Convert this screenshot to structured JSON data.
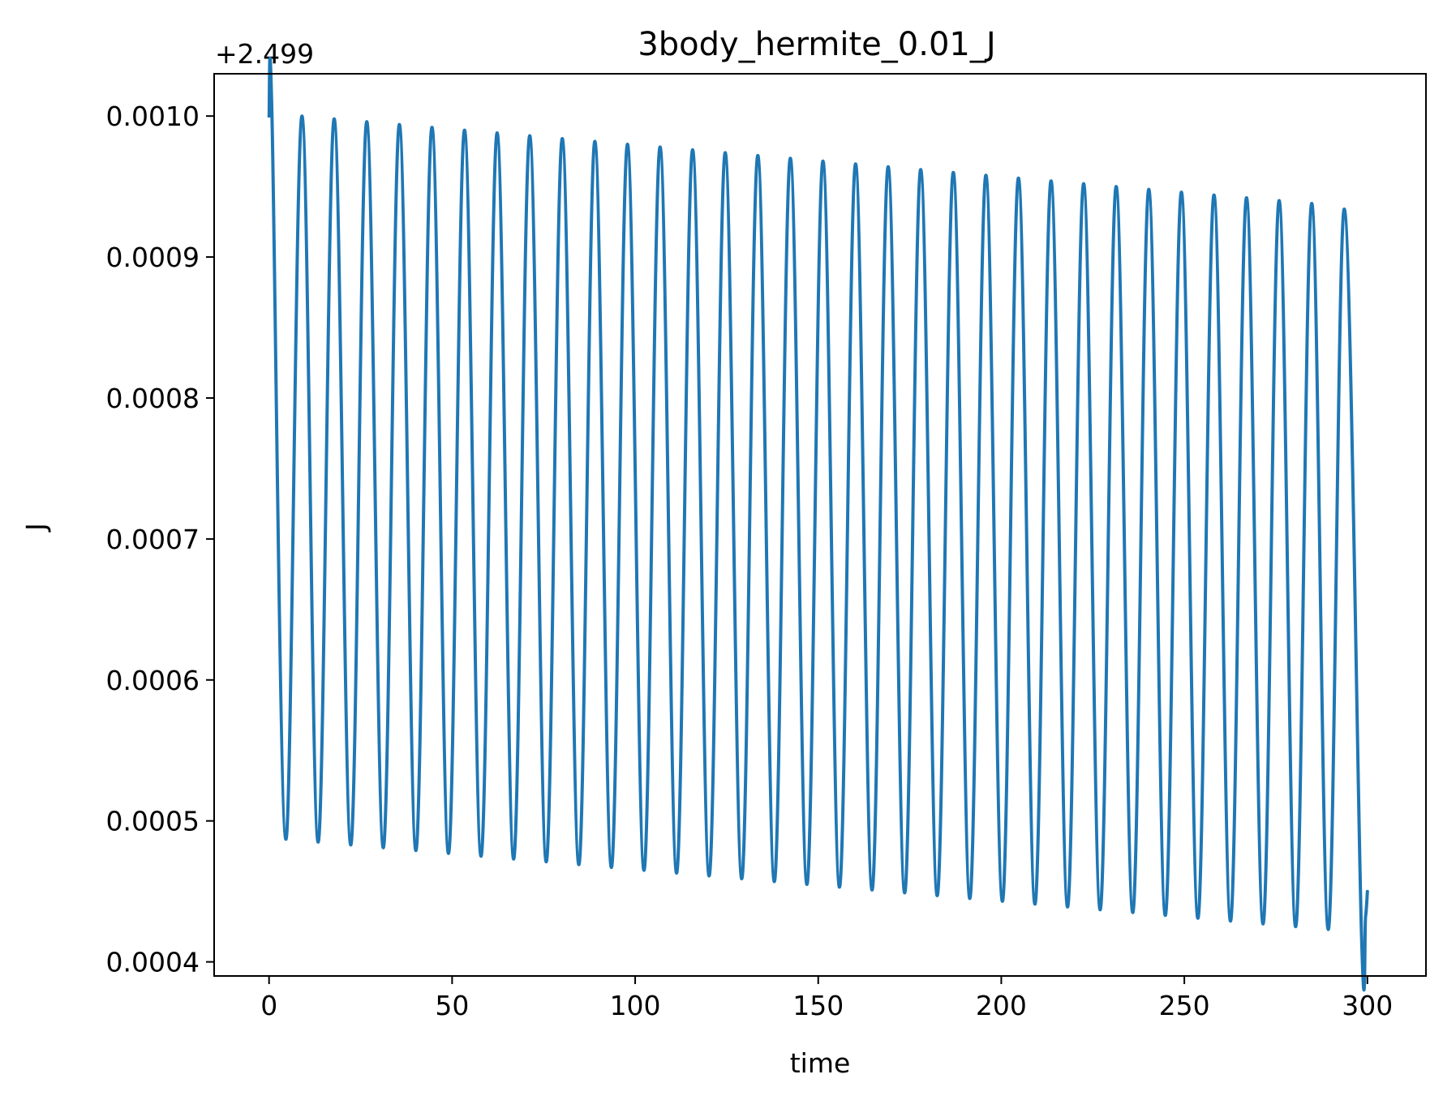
{
  "chart_data": {
    "type": "line",
    "title": "3body_hermite_0.01_J",
    "xlabel": "time",
    "ylabel": "J",
    "y_offset_text": "+2.499",
    "xlim": [
      -15,
      316
    ],
    "ylim": [
      0.00039,
      0.00103
    ],
    "x_ticks": [
      0,
      50,
      100,
      150,
      200,
      250,
      300
    ],
    "x_tick_labels": [
      "0",
      "50",
      "100",
      "150",
      "200",
      "250",
      "300"
    ],
    "y_ticks": [
      0.0004,
      0.0005,
      0.0006,
      0.0007,
      0.0008,
      0.0009,
      0.001
    ],
    "y_tick_labels": [
      "0.0004",
      "0.0005",
      "0.0006",
      "0.0007",
      "0.0008",
      "0.0009",
      "0.0010"
    ],
    "grid": false,
    "line_color": "#1f77b4",
    "series": [
      {
        "x": [
          0.0,
          0.8,
          4.6,
          9.0,
          13.4,
          17.8,
          22.3,
          26.7,
          31.2,
          35.6,
          40.1,
          44.5,
          49.0,
          53.4,
          57.9,
          62.3,
          66.8,
          71.2,
          75.7,
          80.1,
          84.6,
          89.0,
          93.5,
          97.9,
          102.4,
          106.8,
          111.3,
          115.7,
          120.2,
          124.6,
          129.1,
          133.5,
          138.0,
          142.4,
          146.9,
          151.3,
          155.8,
          160.2,
          164.7,
          169.1,
          173.6,
          178.0,
          182.5,
          186.9,
          191.4,
          195.8,
          200.3,
          204.7,
          209.2,
          213.6,
          218.1,
          222.5,
          227.0,
          231.4,
          235.9,
          240.3,
          244.8,
          249.2,
          253.7,
          258.1,
          262.6,
          267.0,
          271.5,
          275.9,
          280.4,
          284.8,
          289.3,
          293.7,
          298.4,
          299.5,
          300.0
        ],
        "y": [
          0.001,
          0.001,
          0.000487,
          0.001,
          0.000485,
          0.000998,
          0.000483,
          0.000996,
          0.000481,
          0.000994,
          0.000479,
          0.000992,
          0.000477,
          0.00099,
          0.000475,
          0.000988,
          0.000473,
          0.000986,
          0.000471,
          0.000984,
          0.000469,
          0.000982,
          0.000467,
          0.00098,
          0.000465,
          0.000978,
          0.000463,
          0.000976,
          0.000461,
          0.000974,
          0.000459,
          0.000972,
          0.000457,
          0.00097,
          0.000455,
          0.000968,
          0.000453,
          0.000966,
          0.000451,
          0.000964,
          0.000449,
          0.000962,
          0.000447,
          0.00096,
          0.000445,
          0.000958,
          0.000443,
          0.000956,
          0.000441,
          0.000954,
          0.000439,
          0.000952,
          0.000437,
          0.00095,
          0.000435,
          0.000948,
          0.000433,
          0.000946,
          0.000431,
          0.000944,
          0.000429,
          0.000942,
          0.000427,
          0.00094,
          0.000425,
          0.000938,
          0.000423,
          0.000934,
          0.000418,
          0.000432,
          0.00045
        ]
      }
    ]
  }
}
